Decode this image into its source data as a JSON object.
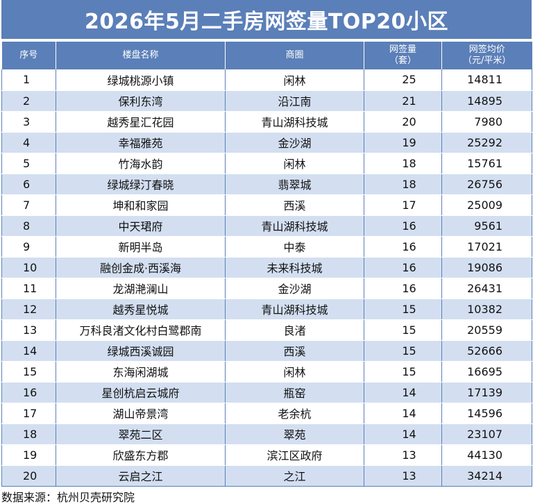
{
  "title": "2026年5月二手房网签量TOP20小区",
  "colors": {
    "header_bg": "#5b7fb8",
    "stripe": "#d3dff1"
  },
  "headers": {
    "rank": "序号",
    "name": "楼盘名称",
    "area": "商圈",
    "count_line1": "网签量",
    "count_line2": "（套）",
    "price_line1": "网签均价",
    "price_line2": "（元/平米）"
  },
  "rows": [
    {
      "rank": "1",
      "name": "绿城桃源小镇",
      "area": "闲林",
      "count": "25",
      "price": "14811"
    },
    {
      "rank": "2",
      "name": "保利东湾",
      "area": "沿江南",
      "count": "21",
      "price": "14895"
    },
    {
      "rank": "3",
      "name": "越秀星汇花园",
      "area": "青山湖科技城",
      "count": "20",
      "price": "7980"
    },
    {
      "rank": "4",
      "name": "幸福雅苑",
      "area": "金沙湖",
      "count": "19",
      "price": "25292"
    },
    {
      "rank": "5",
      "name": "竹海水韵",
      "area": "闲林",
      "count": "18",
      "price": "15761"
    },
    {
      "rank": "6",
      "name": "绿城绿汀春晓",
      "area": "翡翠城",
      "count": "18",
      "price": "26756"
    },
    {
      "rank": "7",
      "name": "坤和和家园",
      "area": "西溪",
      "count": "17",
      "price": "25009"
    },
    {
      "rank": "8",
      "name": "中天珺府",
      "area": "青山湖科技城",
      "count": "16",
      "price": "9561"
    },
    {
      "rank": "9",
      "name": "新明半岛",
      "area": "中泰",
      "count": "16",
      "price": "17021"
    },
    {
      "rank": "10",
      "name": "融创金成·西溪海",
      "area": "未来科技城",
      "count": "16",
      "price": "19086"
    },
    {
      "rank": "11",
      "name": "龙湖滟澜山",
      "area": "金沙湖",
      "count": "16",
      "price": "26431"
    },
    {
      "rank": "12",
      "name": "越秀星悦城",
      "area": "青山湖科技城",
      "count": "15",
      "price": "10382"
    },
    {
      "rank": "13",
      "name": "万科良渚文化村白鹭郡南",
      "area": "良渚",
      "count": "15",
      "price": "20559"
    },
    {
      "rank": "14",
      "name": "绿城西溪诚园",
      "area": "西溪",
      "count": "15",
      "price": "52666"
    },
    {
      "rank": "15",
      "name": "东海闲湖城",
      "area": "闲林",
      "count": "15",
      "price": "16695"
    },
    {
      "rank": "16",
      "name": "星创杭启云城府",
      "area": "瓶窑",
      "count": "14",
      "price": "17139"
    },
    {
      "rank": "17",
      "name": "湖山帝景湾",
      "area": "老余杭",
      "count": "14",
      "price": "14596"
    },
    {
      "rank": "18",
      "name": "翠苑二区",
      "area": "翠苑",
      "count": "14",
      "price": "23107"
    },
    {
      "rank": "19",
      "name": "欣盛东方郡",
      "area": "滨江区政府",
      "count": "13",
      "price": "44130"
    },
    {
      "rank": "20",
      "name": "云启之江",
      "area": "之江",
      "count": "13",
      "price": "34214"
    }
  ],
  "source": "数据来源：杭州贝壳研究院"
}
